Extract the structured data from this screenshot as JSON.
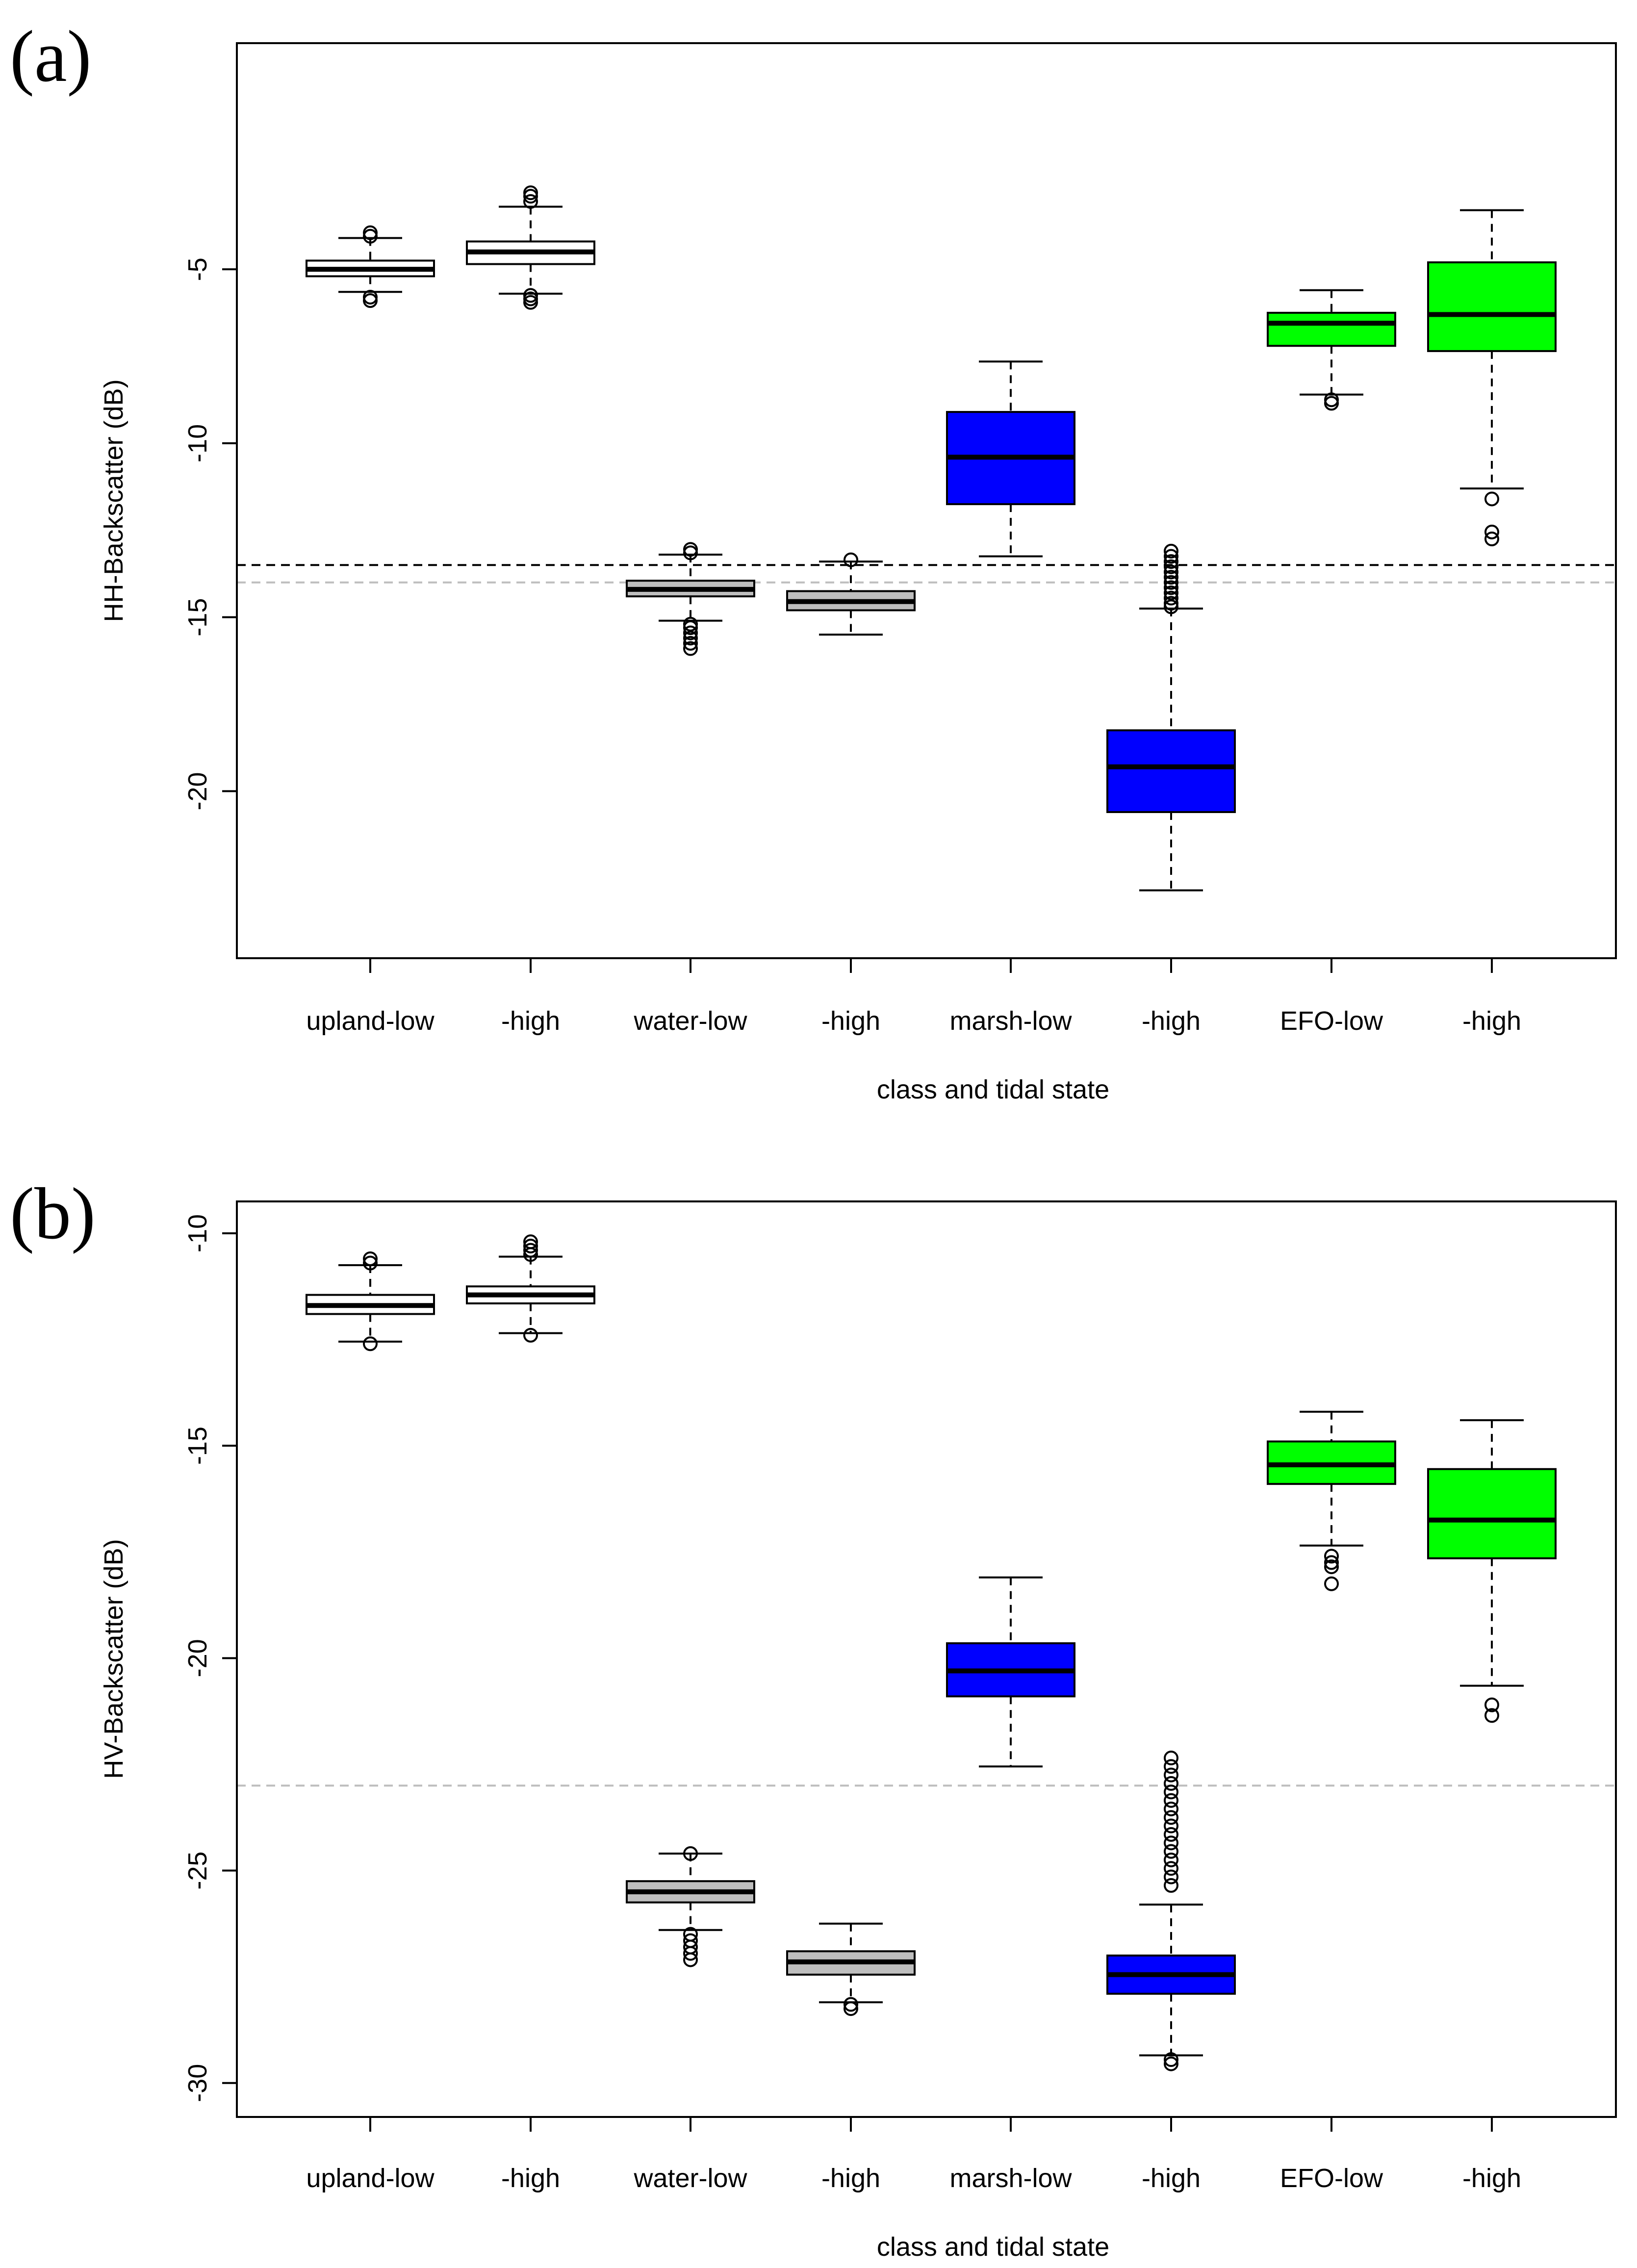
{
  "colors": {
    "upland": "#ffffff",
    "water": "#bebebe",
    "marsh": "#0000ff",
    "efo": "#00ff00",
    "threshold_dark": "#000000",
    "threshold_light": "#bebebe"
  },
  "chart_data": [
    {
      "type": "box",
      "panel_label": "(a)",
      "xlabel": "class and tidal state",
      "ylabel": "HH-Backscatter (dB)",
      "ylim": [
        -24.8,
        1.5
      ],
      "yticks": [
        -5,
        -10,
        -15,
        -20
      ],
      "ytick_labels": [
        "-5",
        "-10",
        "-15",
        "-20"
      ],
      "categories": [
        "upland-low",
        "-high",
        "water-low",
        "-high",
        "marsh-low",
        "-high",
        "EFO-low",
        "-high"
      ],
      "thresholds": [
        {
          "value": -13.5,
          "style": "dark-dashed"
        },
        {
          "value": -14.0,
          "style": "light-dashed"
        }
      ],
      "boxes": [
        {
          "color": "upland",
          "q1": -5.2,
          "median": -5.0,
          "q3": -4.75,
          "whisker_low": -5.65,
          "whisker_high": -4.1,
          "outliers": [
            -3.95,
            -4.05,
            -5.8,
            -5.9
          ]
        },
        {
          "color": "upland",
          "q1": -4.85,
          "median": -4.5,
          "q3": -4.2,
          "whisker_low": -5.7,
          "whisker_high": -3.2,
          "outliers": [
            -2.8,
            -2.9,
            -3.05,
            -5.75,
            -5.85,
            -5.95
          ]
        },
        {
          "color": "water",
          "q1": -14.4,
          "median": -14.2,
          "q3": -13.95,
          "whisker_low": -15.1,
          "whisker_high": -13.2,
          "outliers": [
            -13.05,
            -13.15,
            -15.2,
            -15.3,
            -15.45,
            -15.6,
            -15.75,
            -15.9
          ]
        },
        {
          "color": "water",
          "q1": -14.8,
          "median": -14.55,
          "q3": -14.25,
          "whisker_low": -15.5,
          "whisker_high": -13.4,
          "outliers": [
            -13.35
          ]
        },
        {
          "color": "marsh",
          "q1": -11.75,
          "median": -10.4,
          "q3": -9.1,
          "whisker_low": -13.25,
          "whisker_high": -7.65,
          "outliers": []
        },
        {
          "color": "marsh",
          "q1": -20.6,
          "median": -19.3,
          "q3": -18.25,
          "whisker_low": -22.85,
          "whisker_high": -14.75,
          "outliers": [
            -13.1,
            -13.25,
            -13.4,
            -13.55,
            -13.7,
            -13.85,
            -14.0,
            -14.15,
            -14.3,
            -14.45,
            -14.6,
            -14.7
          ]
        },
        {
          "color": "efo",
          "q1": -7.2,
          "median": -6.55,
          "q3": -6.25,
          "whisker_low": -8.6,
          "whisker_high": -5.6,
          "outliers": [
            -8.75,
            -8.85
          ]
        },
        {
          "color": "efo",
          "q1": -7.35,
          "median": -6.3,
          "q3": -4.8,
          "whisker_low": -11.3,
          "whisker_high": -3.3,
          "outliers": [
            -11.6,
            -12.55,
            -12.75
          ]
        }
      ]
    },
    {
      "type": "box",
      "panel_label": "(b)",
      "xlabel": "class and tidal state",
      "ylabel": "HV-Backscatter (dB)",
      "ylim": [
        -30.8,
        -9.25
      ],
      "yticks": [
        -10,
        -15,
        -20,
        -25,
        -30
      ],
      "ytick_labels": [
        "-10",
        "-15",
        "-20",
        "-25",
        "-30"
      ],
      "categories": [
        "upland-low",
        "-high",
        "water-low",
        "-high",
        "marsh-low",
        "-high",
        "EFO-low",
        "-high"
      ],
      "thresholds": [
        {
          "value": -23.0,
          "style": "light-dashed"
        }
      ],
      "boxes": [
        {
          "color": "upland",
          "q1": -11.9,
          "median": -11.7,
          "q3": -11.45,
          "whisker_low": -12.55,
          "whisker_high": -10.75,
          "outliers": [
            -10.6,
            -10.7,
            -12.6
          ]
        },
        {
          "color": "upland",
          "q1": -11.65,
          "median": -11.45,
          "q3": -11.25,
          "whisker_low": -12.35,
          "whisker_high": -10.55,
          "outliers": [
            -10.2,
            -10.3,
            -10.4,
            -10.5,
            -12.4
          ]
        },
        {
          "color": "water",
          "q1": -25.75,
          "median": -25.5,
          "q3": -25.25,
          "whisker_low": -26.4,
          "whisker_high": -24.6,
          "outliers": [
            -24.6,
            -26.5,
            -26.65,
            -26.8,
            -26.95,
            -27.1
          ]
        },
        {
          "color": "water",
          "q1": -27.45,
          "median": -27.15,
          "q3": -26.9,
          "whisker_low": -28.1,
          "whisker_high": -26.25,
          "outliers": [
            -28.15,
            -28.25
          ]
        },
        {
          "color": "marsh",
          "q1": -20.9,
          "median": -20.3,
          "q3": -19.65,
          "whisker_low": -22.55,
          "whisker_high": -18.1,
          "outliers": []
        },
        {
          "color": "marsh",
          "q1": -27.9,
          "median": -27.45,
          "q3": -27.0,
          "whisker_low": -29.35,
          "whisker_high": -25.8,
          "outliers": [
            -22.35,
            -22.55,
            -22.75,
            -22.95,
            -23.15,
            -23.35,
            -23.55,
            -23.75,
            -23.95,
            -24.15,
            -24.35,
            -24.55,
            -24.75,
            -24.95,
            -25.15,
            -25.35,
            -29.45,
            -29.55
          ]
        },
        {
          "color": "efo",
          "q1": -15.9,
          "median": -15.45,
          "q3": -14.9,
          "whisker_low": -17.35,
          "whisker_high": -14.2,
          "outliers": [
            -17.6,
            -17.75,
            -17.85,
            -18.25
          ]
        },
        {
          "color": "efo",
          "q1": -17.65,
          "median": -16.75,
          "q3": -15.55,
          "whisker_low": -20.65,
          "whisker_high": -14.4,
          "outliers": [
            -21.1,
            -21.35
          ]
        }
      ]
    }
  ]
}
